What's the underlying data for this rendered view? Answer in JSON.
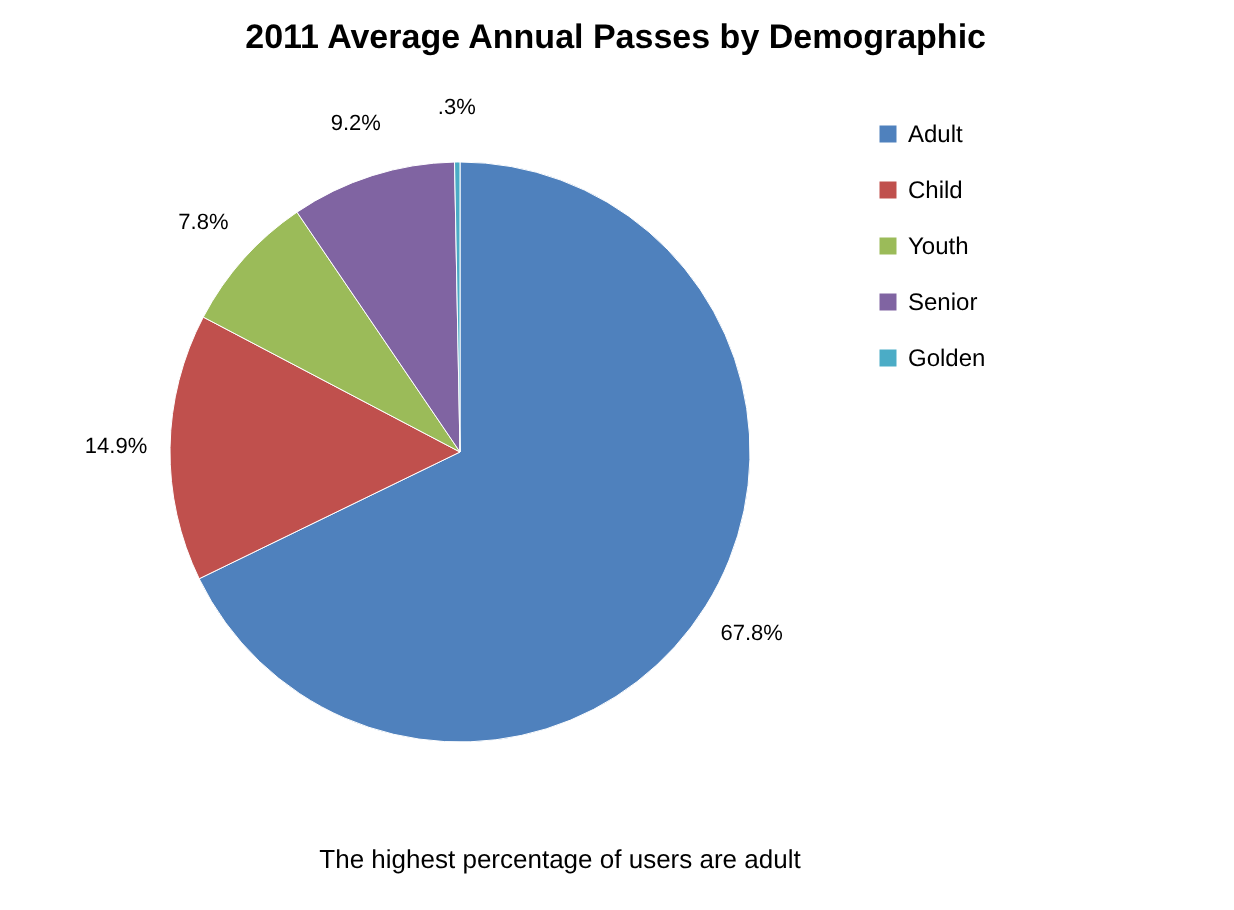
{
  "chart_data": {
    "type": "pie",
    "title": "2011 Average Annual Passes by Demographic",
    "categories": [
      "Adult",
      "Child",
      "Youth",
      "Senior",
      "Golden"
    ],
    "values": [
      67.8,
      14.9,
      7.8,
      9.2,
      0.3
    ],
    "colors": [
      "#4f81bd",
      "#c0504d",
      "#9bbb59",
      "#8064a2",
      "#4bacc6"
    ],
    "value_labels": [
      "67.8%",
      "14.9%",
      "7.8%",
      "9.2%",
      ".3%"
    ],
    "legend": "right",
    "annotations": [
      "The highest percentage of users are adult"
    ]
  }
}
